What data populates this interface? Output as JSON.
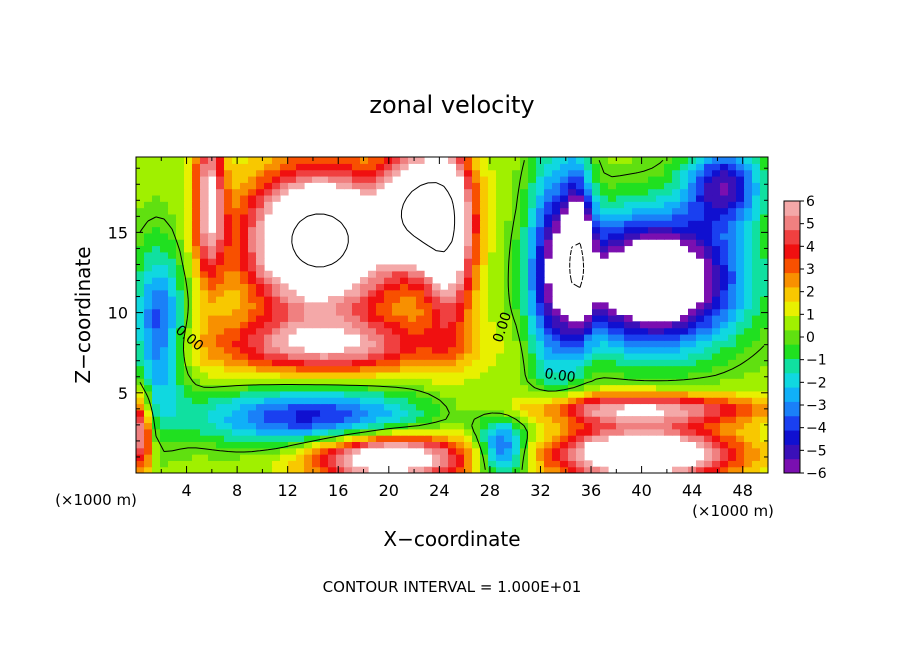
{
  "chart_data": {
    "type": "heatmap",
    "title": "zonal velocity",
    "xlabel": "X−coordinate",
    "ylabel": "Z−coordinate",
    "x_unit_left": "(×1000 m)",
    "x_unit_right": "(×1000 m)",
    "footer": "CONTOUR INTERVAL = 1.000E+01",
    "xlim": [
      0,
      50
    ],
    "ylim": [
      0,
      19.7
    ],
    "x_ticks": [
      {
        "value": 4,
        "label": "4"
      },
      {
        "value": 8,
        "label": "8"
      },
      {
        "value": 12,
        "label": "12"
      },
      {
        "value": 16,
        "label": "16"
      },
      {
        "value": 20,
        "label": "20"
      },
      {
        "value": 24,
        "label": "24"
      },
      {
        "value": 28,
        "label": "28"
      },
      {
        "value": 32,
        "label": "32"
      },
      {
        "value": 36,
        "label": "36"
      },
      {
        "value": 40,
        "label": "40"
      },
      {
        "value": 44,
        "label": "44"
      },
      {
        "value": 48,
        "label": "48"
      }
    ],
    "y_ticks": [
      {
        "value": 5,
        "label": "5"
      },
      {
        "value": 10,
        "label": "10"
      },
      {
        "value": 15,
        "label": "15"
      }
    ],
    "colorbar": {
      "min": -6,
      "max": 6,
      "labels": [
        "6",
        "5",
        "4",
        "3",
        "2",
        "1",
        "0",
        "−1",
        "−2",
        "−3",
        "−4",
        "−5",
        "−6"
      ],
      "colors": [
        "#7a0fb0",
        "#3a10b8",
        "#1010d0",
        "#1a40f0",
        "#1a80f8",
        "#10b0f8",
        "#10d8e0",
        "#10e0a0",
        "#20e020",
        "#60e010",
        "#a0f000",
        "#e8f000",
        "#f8c800",
        "#f89000",
        "#f85000",
        "#f01010",
        "#f04040",
        "#f08080",
        "#f4a8a8"
      ]
    },
    "contour_labels": [
      {
        "text": "0.00",
        "x": 4.0,
        "y": 8.2,
        "angle": 40
      },
      {
        "text": "0.00",
        "x": 29.3,
        "y": 9.0,
        "angle": -72
      },
      {
        "text": "0.00",
        "x": 33.5,
        "y": 5.8,
        "angle": 8
      }
    ],
    "fields": [
      {
        "comment": "left blue column",
        "x": 1.8,
        "z": 9.0,
        "sx": 2.0,
        "sz": 5.0,
        "v": -4.5
      },
      {
        "comment": "left bottom strip",
        "x": 0.4,
        "z": 2.5,
        "sx": 0.8,
        "sz": 2.5,
        "v": 5.5
      },
      {
        "comment": "left red column",
        "x": 5.8,
        "z": 17.0,
        "sx": 1.2,
        "sz": 5.0,
        "v": 5.5
      },
      {
        "comment": "white upper left blob",
        "x": 14.5,
        "z": 14.5,
        "sx": 5.5,
        "sz": 4.2,
        "v": 11
      },
      {
        "comment": "red arc under blob",
        "x": 15.0,
        "z": 8.0,
        "sx": 9.0,
        "sz": 1.8,
        "v": 5.0
      },
      {
        "comment": "red arc right arm",
        "x": 24.8,
        "z": 14.5,
        "sx": 2.0,
        "sz": 5.5,
        "v": 6.0
      },
      {
        "comment": "white upper middle",
        "x": 22.5,
        "z": 16.5,
        "sx": 3.0,
        "sz": 3.5,
        "v": 9
      },
      {
        "comment": "blue band lower left",
        "x": 14.0,
        "z": 3.5,
        "sx": 9.0,
        "sz": 1.8,
        "v": -5.0
      },
      {
        "comment": "white lower left patch",
        "x": 20.0,
        "z": 1.0,
        "sx": 6.0,
        "sz": 1.5,
        "v": 8
      },
      {
        "comment": "blue column",
        "x": 33.0,
        "z": 13.0,
        "sx": 2.0,
        "sz": 7.0,
        "v": -5.0
      },
      {
        "comment": "deep blue column",
        "x": 35.0,
        "z": 14.0,
        "sx": 1.2,
        "sz": 5.0,
        "v": -6.0
      },
      {
        "comment": "white right blob",
        "x": 41.0,
        "z": 12.0,
        "sx": 6.5,
        "sz": 4.0,
        "v": -10
      },
      {
        "comment": "right blue upper",
        "x": 46.5,
        "z": 18.0,
        "sx": 3.0,
        "sz": 2.5,
        "v": -5.5
      },
      {
        "comment": "red band bottom right",
        "x": 40.0,
        "z": 4.0,
        "sx": 9.0,
        "sz": 1.0,
        "v": 5.5
      },
      {
        "comment": "white lower right",
        "x": 40.0,
        "z": 1.2,
        "sx": 7.0,
        "sz": 1.6,
        "v": 9
      },
      {
        "comment": "blue lower middle",
        "x": 29.0,
        "z": 1.5,
        "sx": 2.0,
        "sz": 2.0,
        "v": -5.0
      }
    ]
  }
}
